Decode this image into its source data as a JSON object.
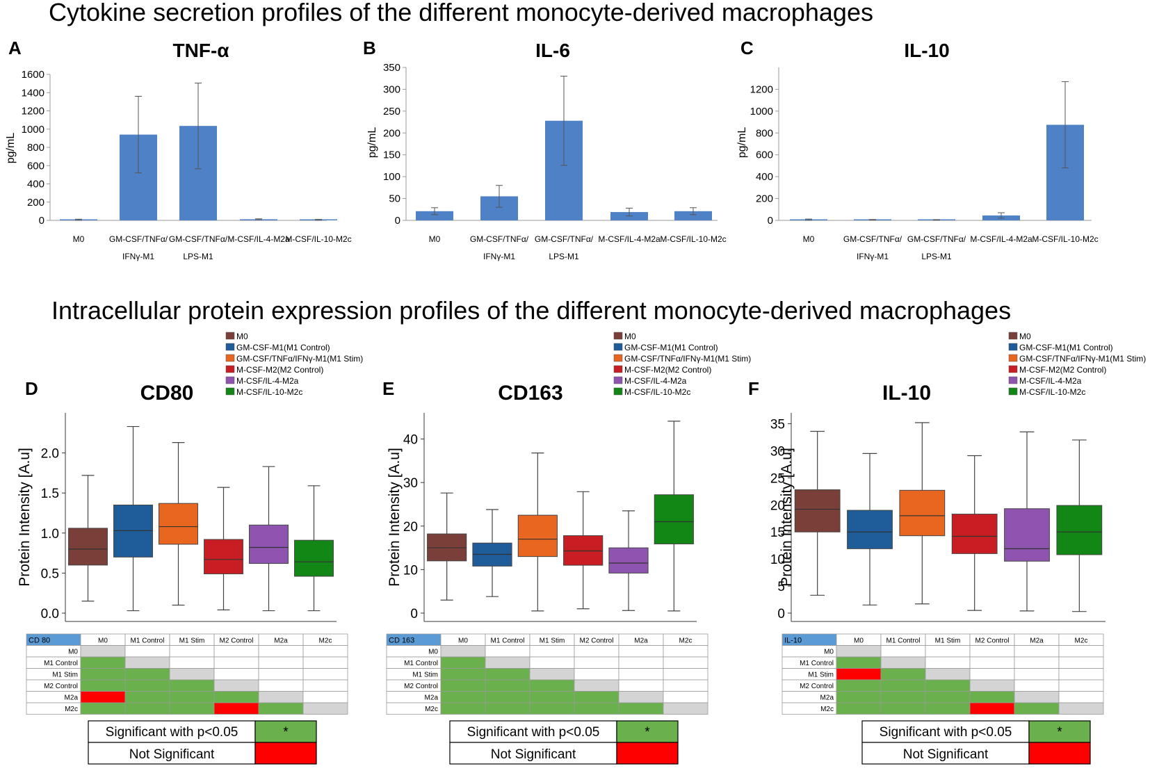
{
  "section_titles": {
    "top": "Cytokine secretion profiles of the different monocyte-derived macrophages",
    "bottom": "Intracellular protein expression profiles of the different monocyte-derived macrophages"
  },
  "colors": {
    "bar": "#4f81c7",
    "sig": "#6ab04c",
    "notsig": "#ff0000",
    "diag": "#d4d4d4",
    "header_cell": "#5b9bd5"
  },
  "bar_categories_lines": [
    [
      "M0"
    ],
    [
      "GM-CSF/TNFα/",
      "IFNγ-M1"
    ],
    [
      "GM-CSF/TNFα/",
      "LPS-M1"
    ],
    [
      "M-CSF/IL-4-M2a"
    ],
    [
      "M-CSF/IL-10-M2c"
    ]
  ],
  "box_legend": [
    {
      "label": "M0",
      "color": "#7b3f3a"
    },
    {
      "label": "GM-CSF-M1(M1 Control)",
      "color": "#1f5c9a"
    },
    {
      "label": "GM-CSF/TNFα/IFNγ-M1(M1 Stim)",
      "color": "#e8661f"
    },
    {
      "label": "M-CSF-M2(M2 Control)",
      "color": "#c81e23"
    },
    {
      "label": "M-CSF/IL-4-M2a",
      "color": "#8e54b0"
    },
    {
      "label": "M-CSF/IL-10-M2c",
      "color": "#138716"
    }
  ],
  "matrix_cols": [
    "M0",
    "M1 Control",
    "M1 Stim",
    "M2 Control",
    "M2a",
    "M2c"
  ],
  "sig_legend": {
    "sig_label": "Significant with p<0.05",
    "sig_mark": "*",
    "notsig_label": "Not Significant"
  },
  "chart_data": [
    {
      "panel": "A",
      "type": "bar",
      "title": "TNF-α",
      "ylabel": "pg/mL",
      "categories": [
        "M0",
        "GM-CSF/TNFα/IFNγ-M1",
        "GM-CSF/TNFα/LPS-M1",
        "M-CSF/IL-4-M2a",
        "M-CSF/IL-10-M2c"
      ],
      "values": [
        3,
        940,
        1035,
        12,
        5
      ],
      "errors": [
        10,
        420,
        470,
        5,
        6
      ],
      "ylim": [
        0,
        1600
      ],
      "yticks": [
        0,
        200,
        400,
        600,
        800,
        1000,
        1200,
        1400,
        1600
      ]
    },
    {
      "panel": "B",
      "type": "bar",
      "title": "IL-6",
      "ylabel": "pg/mL",
      "categories": [
        "M0",
        "GM-CSF/TNFα/IFNγ-M1",
        "GM-CSF/TNFα/LPS-M1",
        "M-CSF/IL-4-M2a",
        "M-CSF/IL-10-M2c"
      ],
      "values": [
        21,
        55,
        228,
        19,
        21
      ],
      "errors": [
        8,
        25,
        102,
        9,
        8
      ],
      "ylim": [
        0,
        350
      ],
      "yticks": [
        0,
        50,
        100,
        150,
        200,
        250,
        300,
        350
      ]
    },
    {
      "panel": "C",
      "type": "bar",
      "title": "IL-10",
      "ylabel": "pg/mL",
      "categories": [
        "M0",
        "GM-CSF/TNFα/IFNγ-M1",
        "GM-CSF/TNFα/LPS-M1",
        "M-CSF/IL-4-M2a",
        "M-CSF/IL-10-M2c"
      ],
      "values": [
        6,
        5,
        4,
        45,
        875
      ],
      "errors": [
        6,
        3,
        3,
        25,
        395
      ],
      "ylim": [
        0,
        1400
      ],
      "yticks": [
        0,
        200,
        400,
        600,
        800,
        1000,
        1200
      ]
    },
    {
      "panel": "D",
      "type": "box",
      "title": "CD80",
      "ylabel": "Protein Intensity [A.u]",
      "ylim": [
        0,
        2.5
      ],
      "yticks": [
        "0.0",
        "0.5",
        "1.0",
        "1.5",
        "2.0"
      ],
      "groups": [
        "M0",
        "M1 Control",
        "M1 Stim",
        "M2 Control",
        "M2a",
        "M2c"
      ],
      "boxes": [
        {
          "min": 0.15,
          "q1": 0.6,
          "median": 0.8,
          "q3": 1.06,
          "max": 1.72
        },
        {
          "min": 0.03,
          "q1": 0.7,
          "median": 1.03,
          "q3": 1.35,
          "max": 2.33
        },
        {
          "min": 0.1,
          "q1": 0.86,
          "median": 1.08,
          "q3": 1.37,
          "max": 2.13
        },
        {
          "min": 0.04,
          "q1": 0.49,
          "median": 0.67,
          "q3": 0.92,
          "max": 1.57
        },
        {
          "min": 0.03,
          "q1": 0.62,
          "median": 0.82,
          "q3": 1.1,
          "max": 1.83
        },
        {
          "min": 0.03,
          "q1": 0.46,
          "median": 0.64,
          "q3": 0.91,
          "max": 1.59
        }
      ],
      "matrix_label": "CD 80",
      "matrix": [
        [
          "-",
          "",
          "",
          "",
          "",
          ""
        ],
        [
          "S",
          "-",
          "",
          "",
          "",
          ""
        ],
        [
          "S",
          "S",
          "-",
          "",
          "",
          ""
        ],
        [
          "S",
          "S",
          "S",
          "-",
          "",
          ""
        ],
        [
          "N",
          "S",
          "S",
          "S",
          "-",
          ""
        ],
        [
          "S",
          "S",
          "S",
          "N",
          "S",
          "-"
        ]
      ]
    },
    {
      "panel": "E",
      "type": "box",
      "title": "CD163",
      "ylabel": "Protein Intensity [A.u]",
      "ylim": [
        0,
        46
      ],
      "yticks": [
        "0",
        "10",
        "20",
        "30",
        "40"
      ],
      "groups": [
        "M0",
        "M1 Control",
        "M1 Stim",
        "M2 Control",
        "M2a",
        "M2c"
      ],
      "boxes": [
        {
          "min": 3.0,
          "q1": 12.0,
          "median": 15.0,
          "q3": 18.2,
          "max": 27.6
        },
        {
          "min": 3.8,
          "q1": 10.8,
          "median": 13.5,
          "q3": 16.1,
          "max": 23.8
        },
        {
          "min": 0.5,
          "q1": 13.0,
          "median": 17.0,
          "q3": 22.5,
          "max": 36.8
        },
        {
          "min": 1.0,
          "q1": 11.0,
          "median": 14.3,
          "q3": 17.8,
          "max": 27.9
        },
        {
          "min": 0.6,
          "q1": 9.2,
          "median": 11.5,
          "q3": 15.0,
          "max": 23.5
        },
        {
          "min": 0.5,
          "q1": 15.9,
          "median": 21.0,
          "q3": 27.2,
          "max": 44.1
        }
      ],
      "matrix_label": "CD 163",
      "matrix": [
        [
          "-",
          "",
          "",
          "",
          "",
          ""
        ],
        [
          "S",
          "-",
          "",
          "",
          "",
          ""
        ],
        [
          "S",
          "S",
          "-",
          "",
          "",
          ""
        ],
        [
          "S",
          "S",
          "S",
          "-",
          "",
          ""
        ],
        [
          "S",
          "S",
          "S",
          "S",
          "-",
          ""
        ],
        [
          "S",
          "S",
          "S",
          "S",
          "S",
          "-"
        ]
      ]
    },
    {
      "panel": "F",
      "type": "box",
      "title": "IL-10",
      "ylabel": "Protein Intensity [A.u]",
      "ylim": [
        0,
        37
      ],
      "yticks": [
        "0",
        "5",
        "10",
        "15",
        "20",
        "25",
        "30",
        "35"
      ],
      "groups": [
        "M0",
        "M1 Control",
        "M1 Stim",
        "M2 Control",
        "M2a",
        "M2c"
      ],
      "boxes": [
        {
          "min": 3.3,
          "q1": 15.0,
          "median": 19.2,
          "q3": 22.8,
          "max": 33.6
        },
        {
          "min": 1.5,
          "q1": 11.9,
          "median": 15.0,
          "q3": 19.0,
          "max": 29.5
        },
        {
          "min": 1.7,
          "q1": 14.3,
          "median": 18.0,
          "q3": 22.7,
          "max": 35.2
        },
        {
          "min": 0.5,
          "q1": 11.0,
          "median": 14.2,
          "q3": 18.3,
          "max": 29.1
        },
        {
          "min": 0.4,
          "q1": 9.6,
          "median": 11.9,
          "q3": 19.3,
          "max": 33.5
        },
        {
          "min": 0.3,
          "q1": 10.8,
          "median": 15.0,
          "q3": 19.9,
          "max": 32.0
        }
      ],
      "matrix_label": "IL-10",
      "matrix": [
        [
          "-",
          "",
          "",
          "",
          "",
          ""
        ],
        [
          "S",
          "-",
          "",
          "",
          "",
          ""
        ],
        [
          "N",
          "S",
          "-",
          "",
          "",
          ""
        ],
        [
          "S",
          "S",
          "S",
          "-",
          "",
          ""
        ],
        [
          "S",
          "S",
          "S",
          "S",
          "-",
          ""
        ],
        [
          "S",
          "S",
          "S",
          "N",
          "S",
          "-"
        ]
      ]
    }
  ]
}
